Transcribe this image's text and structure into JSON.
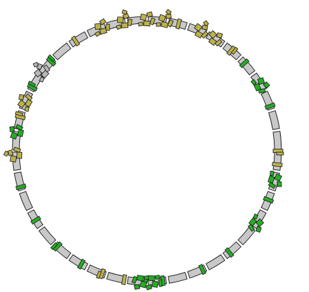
{
  "diagram": {
    "type": "circular-genome-map",
    "colors": {
      "background": "#ffffff",
      "backbone_fill": "#c8c8c8",
      "outline": "#222222",
      "feature_green": "#22b022",
      "feature_olive": "#bdb24a",
      "feature_gray": "#b8b8b8"
    },
    "features": [
      {
        "angle": 0,
        "kind": "cluster",
        "color": "olive"
      },
      {
        "angle": 8,
        "kind": "cluster",
        "color": "olive"
      },
      {
        "angle": 14,
        "kind": "single",
        "color": "olive"
      },
      {
        "angle": 24,
        "kind": "cluster",
        "color": "olive"
      },
      {
        "angle": 31,
        "kind": "cluster",
        "color": "olive"
      },
      {
        "angle": 40,
        "kind": "single",
        "color": "olive"
      },
      {
        "angle": 48,
        "kind": "single",
        "color": "green"
      },
      {
        "angle": 60,
        "kind": "cluster",
        "color": "green"
      },
      {
        "angle": 70,
        "kind": "single",
        "color": "green"
      },
      {
        "angle": 90,
        "kind": "single",
        "color": "olive"
      },
      {
        "angle": 96,
        "kind": "single",
        "color": "olive"
      },
      {
        "angle": 103,
        "kind": "cluster",
        "color": "green"
      },
      {
        "angle": 112,
        "kind": "single",
        "color": "green"
      },
      {
        "angle": 124,
        "kind": "cluster",
        "color": "green"
      },
      {
        "angle": 141,
        "kind": "single",
        "color": "green"
      },
      {
        "angle": 155,
        "kind": "single",
        "color": "green"
      },
      {
        "angle": 173,
        "kind": "single",
        "color": "green"
      },
      {
        "angle": 178,
        "kind": "cluster",
        "color": "green"
      },
      {
        "angle": 183,
        "kind": "cluster",
        "color": "green"
      },
      {
        "angle": 190,
        "kind": "single",
        "color": "olive"
      },
      {
        "angle": 200,
        "kind": "single",
        "color": "olive"
      },
      {
        "angle": 210,
        "kind": "single",
        "color": "green"
      },
      {
        "angle": 223,
        "kind": "single",
        "color": "green"
      },
      {
        "angle": 238,
        "kind": "single",
        "color": "green"
      },
      {
        "angle": 254,
        "kind": "single",
        "color": "green"
      },
      {
        "angle": 268,
        "kind": "cluster",
        "color": "olive"
      },
      {
        "angle": 278,
        "kind": "cluster",
        "color": "green"
      },
      {
        "angle": 285,
        "kind": "single",
        "color": "olive"
      },
      {
        "angle": 292,
        "kind": "cluster",
        "color": "olive"
      },
      {
        "angle": 299,
        "kind": "single",
        "color": "green"
      },
      {
        "angle": 307,
        "kind": "cluster",
        "color": "gray"
      },
      {
        "angle": 313,
        "kind": "single",
        "color": "green"
      },
      {
        "angle": 327,
        "kind": "single",
        "color": "olive"
      },
      {
        "angle": 340,
        "kind": "cluster",
        "color": "olive"
      },
      {
        "angle": 350,
        "kind": "cluster",
        "color": "olive"
      }
    ]
  }
}
